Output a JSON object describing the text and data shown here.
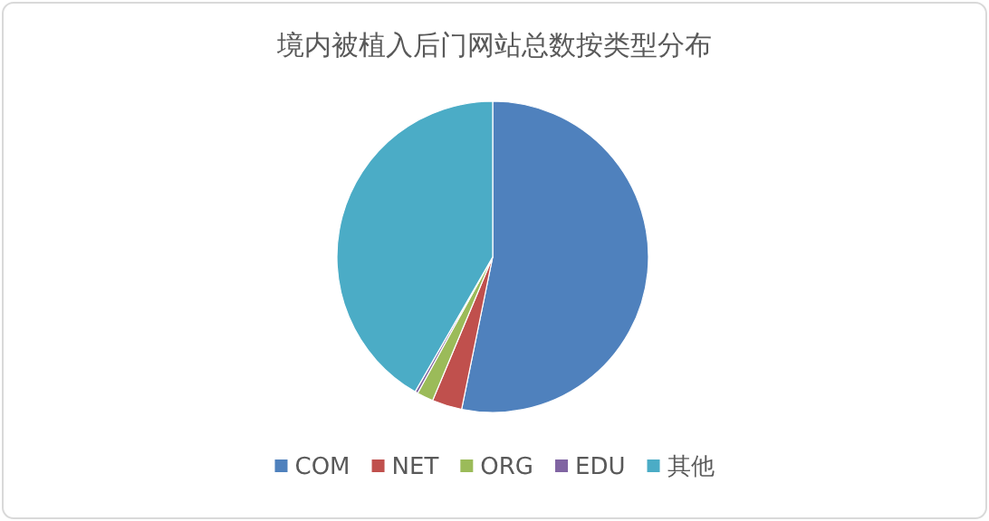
{
  "chart_data": {
    "type": "pie",
    "title": "境内被植入后门网站总数按类型分布",
    "categories": [
      "COM",
      "NET",
      "ORG",
      "EDU",
      "其他"
    ],
    "values": [
      53.2,
      3.1,
      1.7,
      0.3,
      41.7
    ],
    "colors": [
      "#4f81bd",
      "#c0504d",
      "#9bbb59",
      "#8064a2",
      "#4bacc6"
    ],
    "legend": "bottom"
  }
}
